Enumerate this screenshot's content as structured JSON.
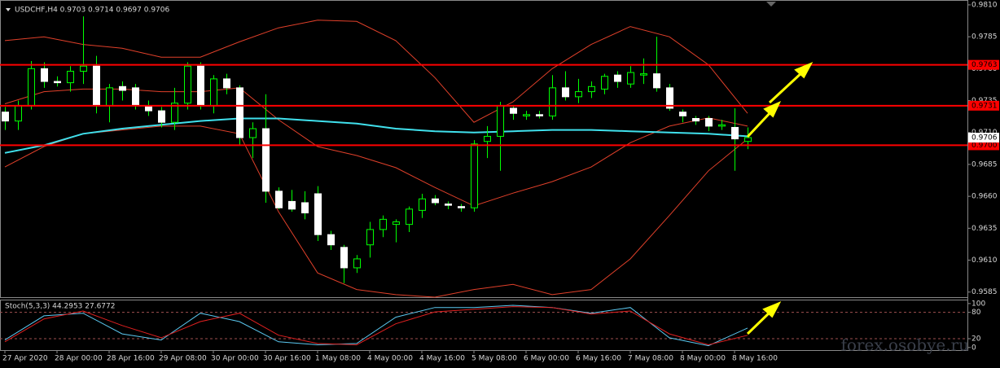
{
  "chart_data": [
    {
      "type": "candlestick",
      "title": "USDCHF,H4 0.9703 0.9714 0.9697 0.9706",
      "watermark": "forex.osobye.ru",
      "categories": [
        "27 Apr 2020",
        null,
        null,
        null,
        "28 Apr 00:00",
        null,
        null,
        null,
        "28 Apr 16:00",
        null,
        null,
        null,
        "29 Apr 08:00",
        null,
        null,
        null,
        "30 Apr 00:00",
        null,
        null,
        null,
        "30 Apr 16:00",
        null,
        null,
        null,
        "1 May 08:00",
        null,
        null,
        null,
        "4 May 00:00",
        null,
        null,
        null,
        "4 May 16:00",
        null,
        null,
        null,
        "5 May 08:00",
        null,
        null,
        null,
        "6 May 00:00",
        null,
        null,
        null,
        "6 May 16:00",
        null,
        null,
        null,
        "7 May 08:00",
        null,
        null,
        null,
        "8 May 00:00",
        null,
        null,
        null,
        "8 May 16:00",
        null
      ],
      "open": [
        0.9726,
        0.9719,
        0.9731,
        0.976,
        0.975,
        0.9749,
        0.9758,
        0.9762,
        0.9731,
        0.9746,
        0.9745,
        0.9731,
        0.9727,
        0.9718,
        0.9733,
        0.9762,
        0.9731,
        0.9752,
        0.9745,
        0.9706,
        0.9713,
        0.9664,
        0.9656,
        0.9655,
        0.9662,
        0.963,
        0.962,
        0.9604,
        0.9622,
        0.9634,
        0.9638,
        0.9638,
        0.9649,
        0.9658,
        0.9654,
        0.9652,
        0.9651,
        0.9703,
        0.9707,
        0.9729,
        0.9723,
        0.9724,
        0.9723,
        0.9745,
        0.9738,
        0.9742,
        0.9744,
        0.9755,
        0.9748,
        0.9755,
        0.9756,
        0.9745,
        0.9726,
        0.9721,
        0.9721,
        0.9715,
        0.9714,
        0.9703
      ],
      "high": [
        0.973,
        0.9735,
        0.9766,
        0.9765,
        0.9754,
        0.9762,
        0.9801,
        0.977,
        0.9748,
        0.975,
        0.9748,
        0.9735,
        0.973,
        0.9745,
        0.9765,
        0.9765,
        0.9755,
        0.9756,
        0.9747,
        0.9718,
        0.974,
        0.9667,
        0.9665,
        0.9664,
        0.9668,
        0.9633,
        0.9622,
        0.9614,
        0.964,
        0.9645,
        0.9642,
        0.9652,
        0.9662,
        0.9661,
        0.9656,
        0.9654,
        0.9704,
        0.9715,
        0.9734,
        0.9731,
        0.9727,
        0.9727,
        0.9755,
        0.9758,
        0.9752,
        0.975,
        0.9756,
        0.9758,
        0.9762,
        0.9768,
        0.9785,
        0.9748,
        0.9728,
        0.9723,
        0.9723,
        0.972,
        0.9729,
        0.9714
      ],
      "low": [
        0.9712,
        0.9712,
        0.9728,
        0.9745,
        0.9746,
        0.9742,
        0.9748,
        0.9725,
        0.9718,
        0.9735,
        0.9728,
        0.9723,
        0.9714,
        0.9712,
        0.9728,
        0.9728,
        0.9725,
        0.974,
        0.97,
        0.969,
        0.9655,
        0.965,
        0.9648,
        0.9642,
        0.9625,
        0.9618,
        0.9592,
        0.96,
        0.9612,
        0.9628,
        0.9624,
        0.9632,
        0.9643,
        0.9653,
        0.965,
        0.9648,
        0.9648,
        0.969,
        0.968,
        0.972,
        0.972,
        0.9721,
        0.972,
        0.9735,
        0.9733,
        0.9737,
        0.974,
        0.9745,
        0.9745,
        0.9748,
        0.9742,
        0.9727,
        0.9718,
        0.9716,
        0.9711,
        0.9712,
        0.968,
        0.9697
      ],
      "close": [
        0.9719,
        0.9731,
        0.976,
        0.975,
        0.9749,
        0.9758,
        0.9762,
        0.9731,
        0.9745,
        0.9743,
        0.9731,
        0.9727,
        0.9718,
        0.9733,
        0.9762,
        0.9731,
        0.9752,
        0.9745,
        0.9706,
        0.9713,
        0.9664,
        0.9651,
        0.965,
        0.9647,
        0.963,
        0.9622,
        0.9604,
        0.9611,
        0.9634,
        0.9642,
        0.964,
        0.965,
        0.9658,
        0.9655,
        0.9653,
        0.9651,
        0.9701,
        0.9707,
        0.9731,
        0.9725,
        0.9724,
        0.9723,
        0.9745,
        0.9738,
        0.9742,
        0.9746,
        0.9754,
        0.975,
        0.9757,
        0.9756,
        0.9745,
        0.9729,
        0.9723,
        0.9719,
        0.9715,
        0.9716,
        0.9705,
        0.9706
      ],
      "up_color": "#000000",
      "down_color": "#ffffff",
      "wick_color": "#00ff00",
      "overlays": [
        {
          "color": "#e0402a",
          "width": 1,
          "x": [
            0,
            3,
            6,
            9,
            12,
            15,
            18,
            21,
            24,
            27,
            30,
            33,
            36,
            39,
            42,
            45,
            48,
            51,
            54,
            57
          ],
          "values": [
            0.9782,
            0.9785,
            0.9779,
            0.9776,
            0.9769,
            0.9769,
            0.9781,
            0.9792,
            0.9798,
            0.9797,
            0.9782,
            0.9753,
            0.9718,
            0.9734,
            0.976,
            0.9779,
            0.9793,
            0.9785,
            0.9763,
            0.9725
          ]
        },
        {
          "color": "#e0402a",
          "width": 1,
          "x": [
            0,
            3,
            6,
            9,
            12,
            15,
            18,
            21,
            24,
            27,
            30,
            33,
            36,
            39,
            42,
            45,
            48,
            51,
            54,
            57
          ],
          "values": [
            0.97325,
            0.9742,
            0.9744,
            0.9744,
            0.9742,
            0.9742,
            0.9745,
            0.972,
            0.9699,
            0.9692,
            0.96825,
            0.9667,
            0.96525,
            0.96625,
            0.96715,
            0.9683,
            0.9702,
            0.9715,
            0.97215,
            0.9715
          ]
        },
        {
          "color": "#e0402a",
          "width": 1,
          "x": [
            0,
            3,
            6,
            9,
            12,
            15,
            18,
            21,
            24,
            27,
            30,
            33,
            36,
            39,
            42,
            45,
            48,
            51,
            54,
            57
          ],
          "values": [
            0.9683,
            0.9699,
            0.9709,
            0.9712,
            0.9715,
            0.9715,
            0.9709,
            0.9648,
            0.96,
            0.9587,
            0.9583,
            0.9581,
            0.9587,
            0.9591,
            0.9583,
            0.9587,
            0.9611,
            0.9645,
            0.968,
            0.9705
          ]
        },
        {
          "color": "#40e0ec",
          "width": 2,
          "x": [
            0,
            3,
            6,
            9,
            12,
            15,
            18,
            21,
            24,
            27,
            30,
            33,
            36,
            39,
            42,
            45,
            48,
            51,
            54,
            57
          ],
          "values": [
            0.9694,
            0.97,
            0.9709,
            0.9713,
            0.9716,
            0.9719,
            0.9721,
            0.9721,
            0.9719,
            0.9717,
            0.9713,
            0.9711,
            0.971,
            0.9711,
            0.9712,
            0.9712,
            0.9711,
            0.971,
            0.9709,
            0.9707
          ]
        }
      ],
      "levels": [
        0.9763,
        0.9731,
        {
          "value": 0.97,
          "label": "0.9700"
        }
      ],
      "level_color": "#ff0000",
      "last_price": 0.9706,
      "xlim": [
        -0.375,
        73.875
      ],
      "ylim": [
        0.9581,
        0.98138
      ],
      "yticks": [
        {
          "value": 0.981,
          "label": "0.9810"
        },
        0.9785,
        {
          "value": 0.976,
          "label": "0.9760"
        },
        0.9735,
        {
          "value": 0.971,
          "label": "0.9710"
        },
        0.9685,
        {
          "value": 0.966,
          "label": "0.9660"
        },
        0.9635,
        {
          "value": 0.961,
          "label": "0.9610"
        },
        0.9585
      ]
    },
    {
      "type": "line",
      "title": "Stoch(5,3,3) 44.2953 27.6772",
      "xlim": [
        -0.375,
        73.875
      ],
      "ylim": [
        -6,
        109
      ],
      "yticks": [
        0,
        20,
        80,
        100
      ],
      "levels": [
        20,
        80
      ],
      "series": [
        {
          "color": "#5bc8f0",
          "x": [
            0,
            3,
            6,
            9,
            12,
            15,
            18,
            21,
            24,
            27,
            30,
            33,
            36,
            39,
            42,
            45,
            48,
            51,
            54,
            57
          ],
          "values": [
            17,
            72,
            78,
            31,
            17,
            78,
            59,
            13,
            6,
            9,
            69,
            91,
            91,
            96,
            91,
            78,
            91,
            22,
            4,
            44.2953
          ]
        },
        {
          "color": "#e02020",
          "x": [
            0,
            3,
            6,
            9,
            12,
            15,
            18,
            21,
            24,
            27,
            30,
            33,
            36,
            39,
            42,
            45,
            48,
            51,
            54,
            57
          ],
          "values": [
            13,
            65,
            83,
            50,
            22,
            59,
            78,
            28,
            9,
            6,
            54,
            81,
            87,
            93,
            91,
            76,
            83,
            31,
            6,
            27.6772
          ]
        }
      ]
    }
  ]
}
